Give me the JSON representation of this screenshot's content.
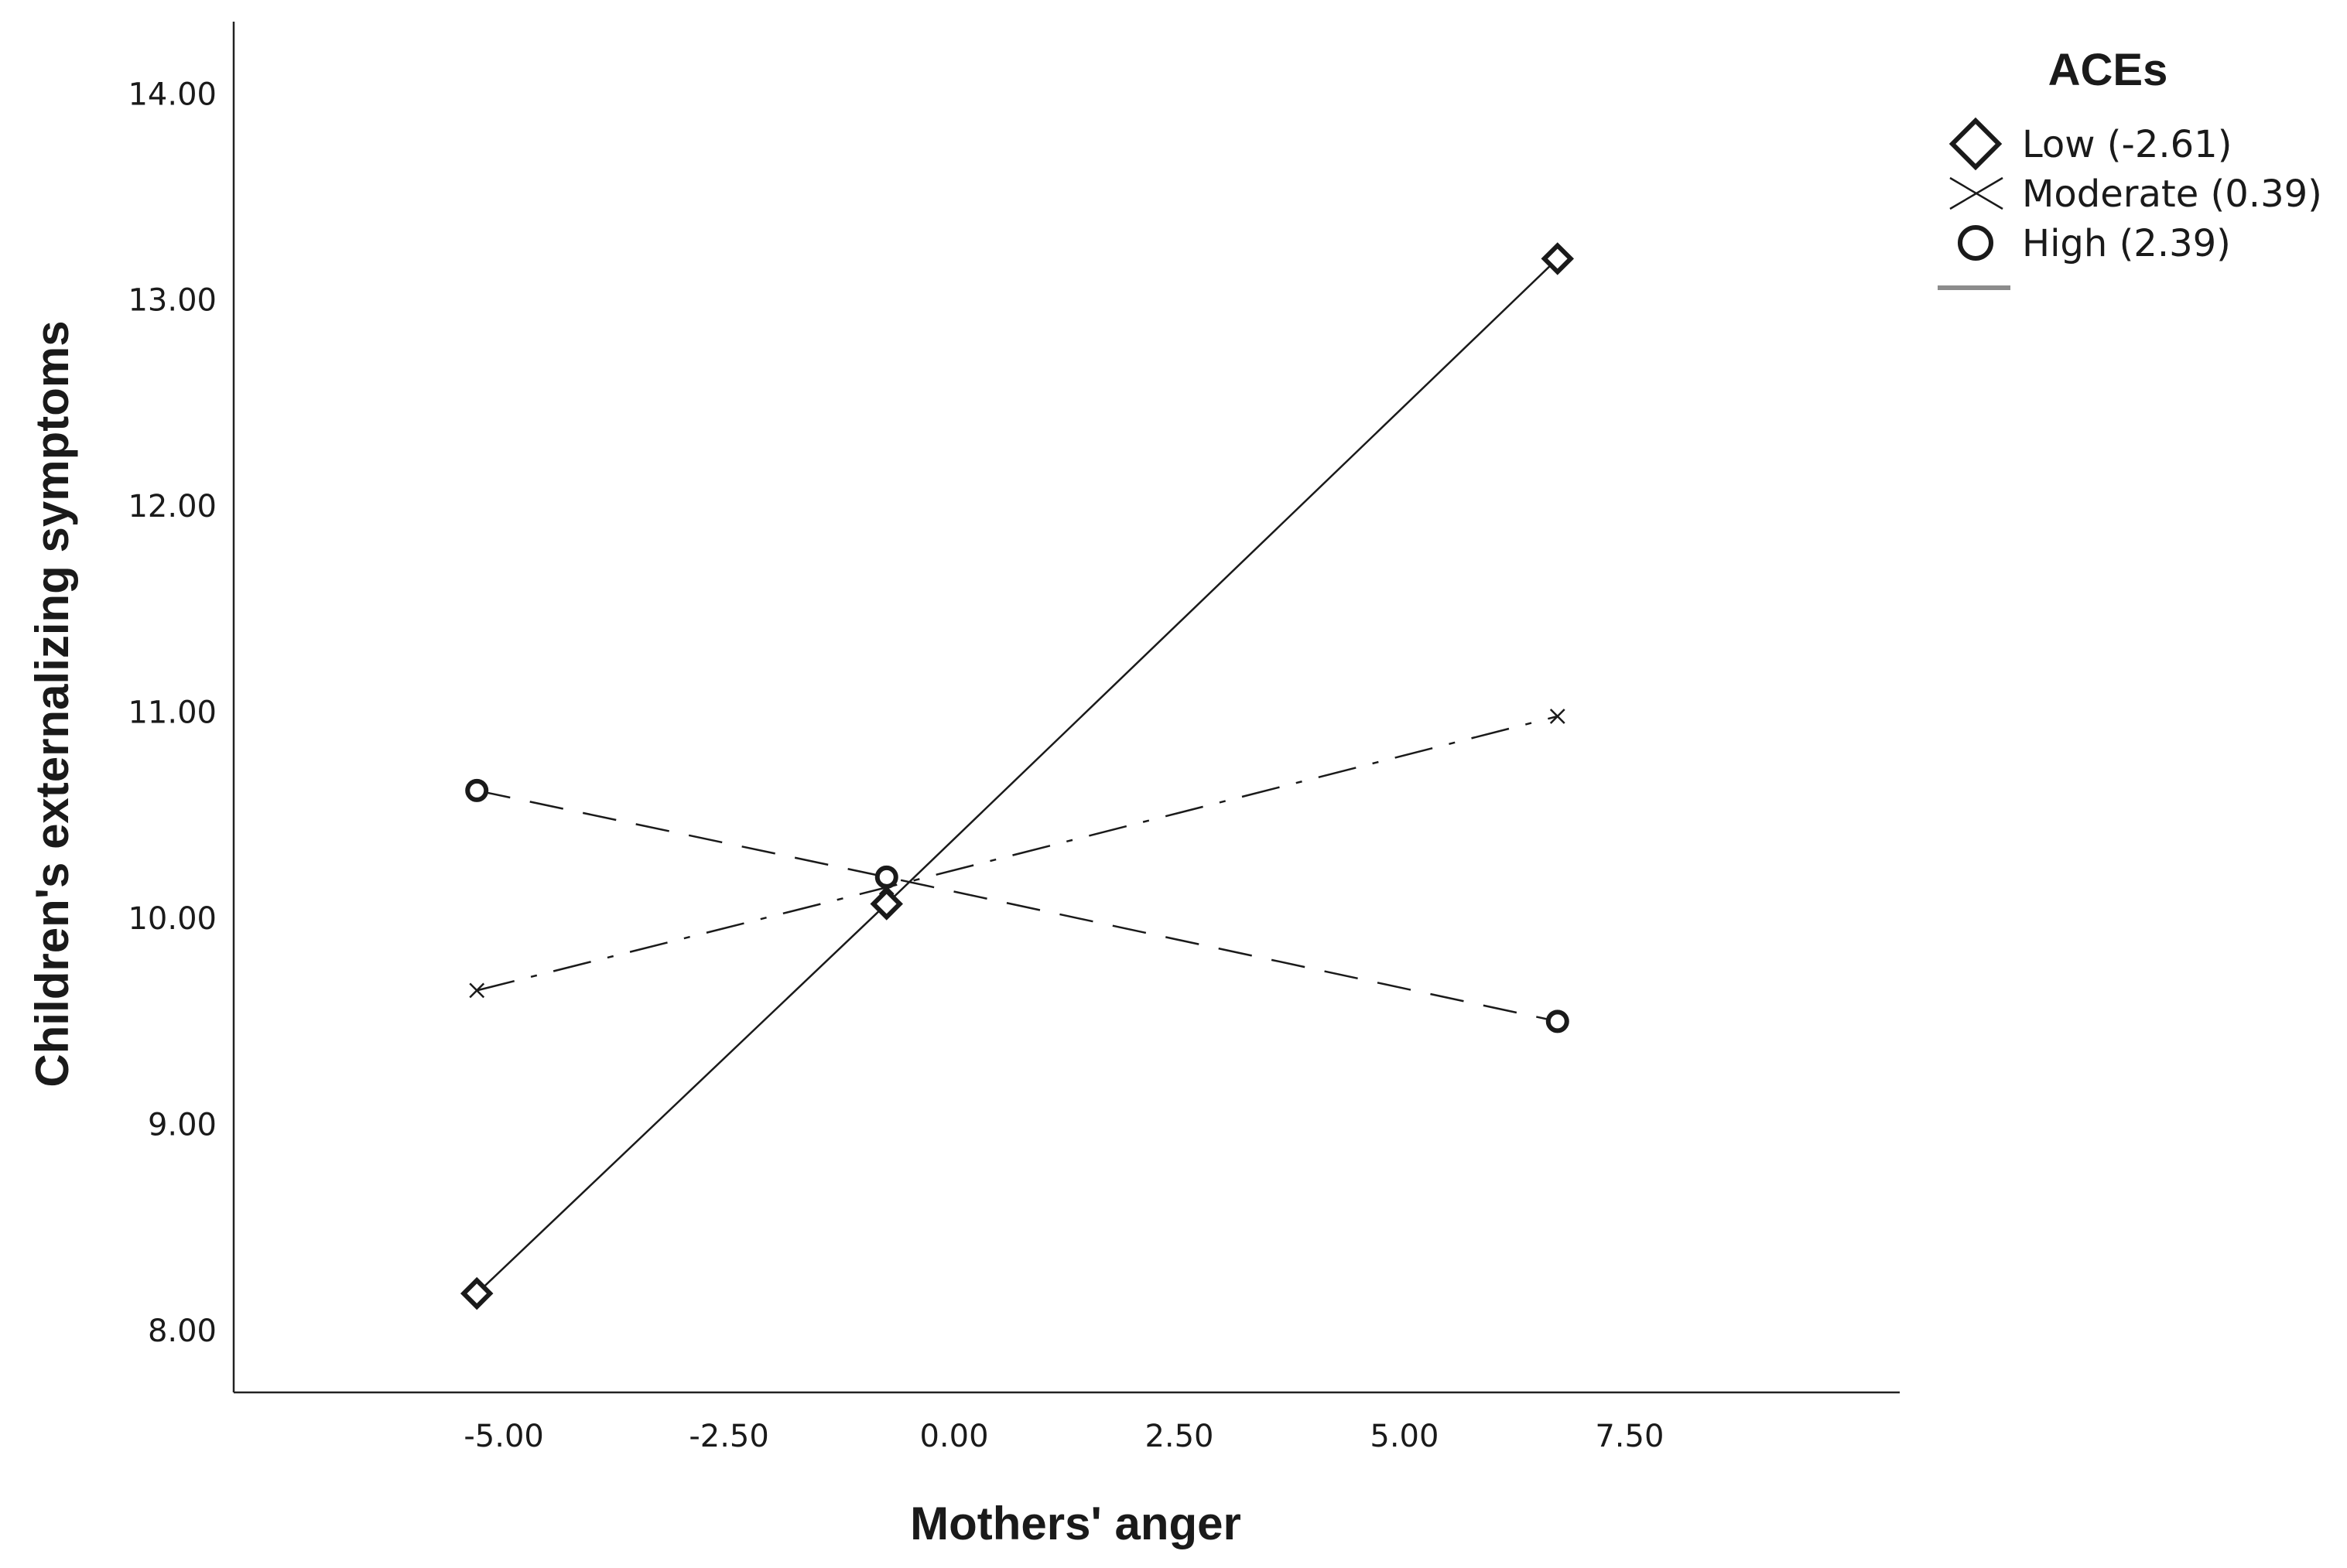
{
  "chart_data": {
    "type": "line",
    "xlabel": "Mothers' anger",
    "ylabel": "Children's externalizing symptoms",
    "xlim": [
      -8.0,
      10.5
    ],
    "ylim": [
      7.7,
      14.35
    ],
    "x_ticks": [
      -5.0,
      -2.5,
      0.0,
      2.5,
      5.0,
      7.5
    ],
    "x_tick_labels": [
      "-5.00",
      "-2.50",
      "0.00",
      "2.50",
      "5.00",
      "7.50"
    ],
    "y_ticks": [
      8.0,
      9.0,
      10.0,
      11.0,
      12.0,
      13.0,
      14.0
    ],
    "y_tick_labels": [
      "8.00",
      "9.00",
      "10.00",
      "11.00",
      "12.00",
      "13.00",
      "14.00"
    ],
    "grid": false,
    "legend": {
      "title": "ACEs",
      "placement": "top-right, outside plot"
    },
    "series": [
      {
        "name": "Low (-2.61)",
        "marker": "diamond",
        "line_style": "solid",
        "x": [
          -5.3,
          -0.75,
          6.7
        ],
        "y": [
          8.18,
          10.07,
          13.2
        ]
      },
      {
        "name": "Moderate (0.39)",
        "marker": "x",
        "line_style": "dash-dot",
        "x": [
          -5.3,
          -0.75,
          6.7
        ],
        "y": [
          9.65,
          10.15,
          10.98
        ]
      },
      {
        "name": "High (2.39)",
        "marker": "circle",
        "line_style": "dashed",
        "x": [
          -5.3,
          -0.75,
          6.7
        ],
        "y": [
          10.62,
          10.2,
          9.5
        ]
      }
    ],
    "colors": {
      "line": "#1a1a1a",
      "axis": "#222222",
      "legend_swatch": "#8c8c8c"
    }
  }
}
